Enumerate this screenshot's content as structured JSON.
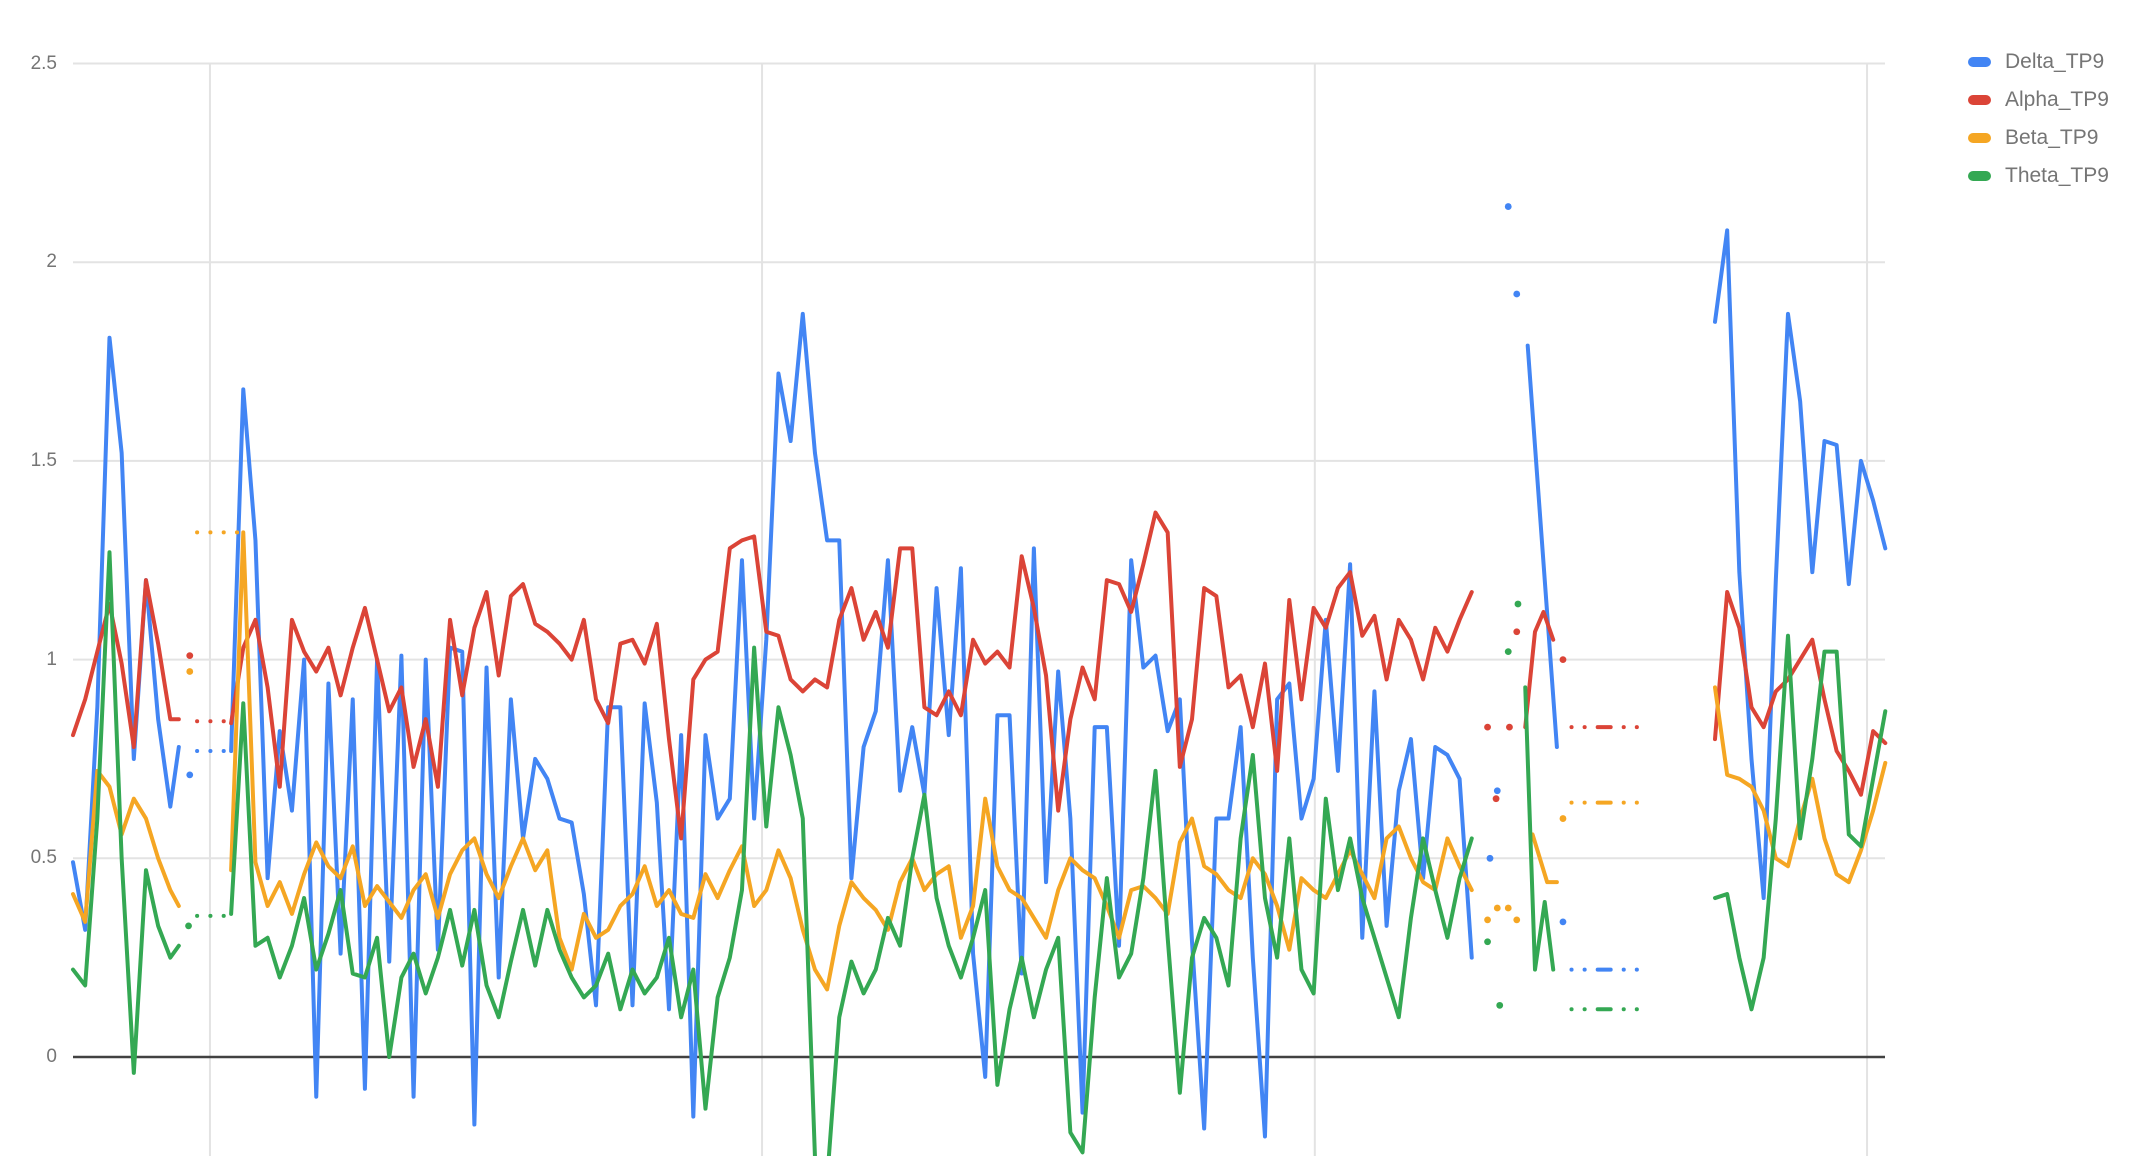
{
  "chart_data": {
    "type": "line",
    "title": "",
    "legend": {
      "position": "right",
      "items": [
        "Delta_TP9",
        "Alpha_TP9",
        "Beta_TP9",
        "Theta_TP9"
      ]
    },
    "y_axis": {
      "min": -0.25,
      "max": 2.5,
      "ticks": [
        0,
        0.5,
        1,
        1.5,
        2,
        2.5
      ],
      "tick_labels": [
        "2.5",
        "2",
        "1.5",
        "1",
        "0.5",
        "0"
      ],
      "baseline_color": "#424242",
      "label_color": "#757575"
    },
    "x_axis": {
      "visible": false,
      "index_range": [
        0,
        149
      ]
    },
    "grid": {
      "horizontal": true,
      "vertical": true,
      "color": "#e3e3e3",
      "x_gridlines_i": [
        11.26,
        56.65,
        102.1,
        147.5
      ]
    },
    "series": [
      {
        "name": "Delta_TP9",
        "color": "#4285f4",
        "segments": [
          {
            "style": "solid",
            "points": [
              [
                0,
                0.49
              ],
              [
                1,
                0.32
              ],
              [
                2,
                0.88
              ],
              [
                3,
                1.81
              ],
              [
                4,
                1.52
              ],
              [
                5,
                0.75
              ],
              [
                6,
                1.2
              ],
              [
                7,
                0.85
              ],
              [
                8,
                0.63
              ],
              [
                8.7,
                0.78
              ]
            ]
          },
          {
            "style": "dots",
            "points": [
              [
                10.2,
                0.77
              ],
              [
                13.0,
                0.77
              ]
            ]
          },
          {
            "style": "solid",
            "start_i": 13,
            "values": [
              0.77,
              1.68,
              1.3,
              0.45,
              0.82,
              0.62,
              1.0,
              -0.1,
              0.94,
              0.26,
              0.9,
              -0.08,
              1.0,
              0.24,
              1.01,
              -0.1,
              1.0,
              0.27,
              1.03,
              1.02,
              -0.17,
              0.98,
              0.2,
              0.9,
              0.55,
              0.75,
              0.7,
              0.6,
              0.59,
              0.41,
              0.13,
              0.88,
              0.88,
              0.13,
              0.89,
              0.64,
              0.12,
              0.81,
              -0.15,
              0.81,
              0.6,
              0.65,
              1.25,
              0.6,
              1.05,
              1.72,
              1.55,
              1.87,
              1.52,
              1.3,
              1.3,
              0.45,
              0.78,
              0.87,
              1.25,
              0.67,
              0.83,
              0.66,
              1.18,
              0.81,
              1.23,
              0.26,
              -0.05,
              0.86,
              0.86,
              0.21,
              1.28,
              0.44,
              0.97,
              0.6,
              -0.14,
              0.83,
              0.83,
              0.28,
              1.25,
              0.98,
              1.01,
              0.82,
              0.9,
              0.29,
              -0.18,
              0.6,
              0.6,
              0.83,
              0.25,
              -0.2,
              0.9,
              0.94,
              0.6,
              0.7,
              1.1,
              0.72,
              1.24,
              0.3,
              0.92,
              0.33,
              0.67,
              0.8,
              0.45,
              0.78,
              0.76,
              0.7,
              0.25
            ]
          },
          {
            "style": "solid",
            "points": [
              [
                119.6,
                1.79
              ],
              [
                122.0,
                0.78
              ]
            ]
          },
          {
            "style": "dashdot",
            "points": [
              [
                123.2,
                0.22
              ],
              [
                129.3,
                0.22
              ]
            ]
          },
          {
            "style": "solid",
            "start_i": 135,
            "values": [
              1.85,
              2.08,
              1.22,
              0.75,
              0.4,
              1.2,
              1.87,
              1.65,
              1.22,
              1.55,
              1.54,
              1.19,
              1.5,
              1.4,
              1.28
            ]
          }
        ],
        "dots": [
          [
            9.6,
            0.71
          ],
          [
            116.5,
            0.5
          ],
          [
            117.1,
            0.67
          ],
          [
            118,
            2.14
          ],
          [
            118.7,
            1.92
          ],
          [
            122.5,
            0.34
          ]
        ]
      },
      {
        "name": "Alpha_TP9",
        "color": "#db4437",
        "segments": [
          {
            "style": "solid",
            "points": [
              [
                0,
                0.81
              ],
              [
                1,
                0.9
              ],
              [
                2,
                1.02
              ],
              [
                3,
                1.14
              ],
              [
                4,
                0.99
              ],
              [
                5,
                0.78
              ],
              [
                6,
                1.2
              ],
              [
                7,
                1.04
              ],
              [
                8,
                0.85
              ],
              [
                8.7,
                0.85
              ]
            ]
          },
          {
            "style": "dots",
            "points": [
              [
                10.2,
                0.845
              ],
              [
                13.0,
                0.845
              ]
            ]
          },
          {
            "style": "solid",
            "start_i": 13,
            "values": [
              0.84,
              1.03,
              1.1,
              0.93,
              0.68,
              1.1,
              1.02,
              0.97,
              1.03,
              0.91,
              1.03,
              1.13,
              1.0,
              0.87,
              0.93,
              0.73,
              0.85,
              0.68,
              1.1,
              0.91,
              1.08,
              1.17,
              0.96,
              1.16,
              1.19,
              1.09,
              1.07,
              1.04,
              1.0,
              1.1,
              0.9,
              0.84,
              1.04,
              1.05,
              0.99,
              1.09,
              0.8,
              0.55,
              0.95,
              1.0,
              1.02,
              1.28,
              1.3,
              1.31,
              1.07,
              1.06,
              0.95,
              0.92,
              0.95,
              0.93,
              1.1,
              1.18,
              1.05,
              1.12,
              1.03,
              1.28,
              1.28,
              0.88,
              0.86,
              0.92,
              0.86,
              1.05,
              0.99,
              1.02,
              0.98,
              1.26,
              1.13,
              0.96,
              0.62,
              0.85,
              0.98,
              0.9,
              1.2,
              1.19,
              1.12,
              1.24,
              1.37,
              1.32,
              0.73,
              0.85,
              1.18,
              1.16,
              0.93,
              0.96,
              0.83,
              0.99,
              0.72,
              1.15,
              0.9,
              1.13,
              1.08,
              1.18,
              1.22,
              1.06,
              1.11,
              0.95,
              1.1,
              1.05,
              0.95,
              1.08,
              1.02,
              1.1,
              1.17
            ]
          },
          {
            "style": "solid",
            "points": [
              [
                119.4,
                0.83
              ],
              [
                120.2,
                1.07
              ],
              [
                120.9,
                1.12
              ],
              [
                121.7,
                1.05
              ]
            ]
          },
          {
            "style": "dashdot",
            "points": [
              [
                123.2,
                0.83
              ],
              [
                129.3,
                0.83
              ]
            ]
          },
          {
            "style": "solid",
            "start_i": 135,
            "values": [
              0.8,
              1.17,
              1.08,
              0.88,
              0.83,
              0.92,
              0.95,
              1.0,
              1.05,
              0.9,
              0.77,
              0.72,
              0.66,
              0.82,
              0.79
            ]
          }
        ],
        "dots": [
          [
            9.6,
            1.01
          ],
          [
            116.3,
            0.83
          ],
          [
            117.0,
            0.65
          ],
          [
            118.1,
            0.83
          ],
          [
            118.7,
            1.07
          ],
          [
            122.5,
            1.0
          ]
        ]
      },
      {
        "name": "Beta_TP9",
        "color": "#f5a623",
        "segments": [
          {
            "style": "solid",
            "points": [
              [
                0,
                0.41
              ],
              [
                1,
                0.34
              ],
              [
                2,
                0.72
              ],
              [
                3,
                0.68
              ],
              [
                4,
                0.56
              ],
              [
                5,
                0.65
              ],
              [
                6,
                0.6
              ],
              [
                7,
                0.5
              ],
              [
                8,
                0.42
              ],
              [
                8.7,
                0.38
              ]
            ]
          },
          {
            "style": "dots",
            "points": [
              [
                10.2,
                1.32
              ],
              [
                13.9,
                1.32
              ]
            ]
          },
          {
            "style": "solid",
            "start_i": 13,
            "values": [
              0.47,
              1.32,
              0.49,
              0.38,
              0.44,
              0.36,
              0.46,
              0.54,
              0.48,
              0.45,
              0.53,
              0.38,
              0.43,
              0.39,
              0.35,
              0.42,
              0.46,
              0.35,
              0.46,
              0.52,
              0.55,
              0.46,
              0.4,
              0.48,
              0.55,
              0.47,
              0.52,
              0.3,
              0.22,
              0.36,
              0.3,
              0.32,
              0.38,
              0.41,
              0.48,
              0.38,
              0.42,
              0.36,
              0.35,
              0.46,
              0.4,
              0.47,
              0.53,
              0.38,
              0.42,
              0.52,
              0.45,
              0.32,
              0.22,
              0.17,
              0.33,
              0.44,
              0.4,
              0.37,
              0.32,
              0.44,
              0.5,
              0.42,
              0.46,
              0.48,
              0.3,
              0.38,
              0.65,
              0.48,
              0.42,
              0.4,
              0.35,
              0.3,
              0.42,
              0.5,
              0.47,
              0.45,
              0.38,
              0.3,
              0.42,
              0.43,
              0.4,
              0.36,
              0.54,
              0.6,
              0.48,
              0.46,
              0.42,
              0.4,
              0.5,
              0.46,
              0.38,
              0.27,
              0.45,
              0.42,
              0.4,
              0.46,
              0.52,
              0.46,
              0.4,
              0.55,
              0.58,
              0.5,
              0.44,
              0.42,
              0.55,
              0.48,
              0.42
            ]
          },
          {
            "style": "solid",
            "points": [
              [
                120.0,
                0.56
              ],
              [
                121.2,
                0.44
              ],
              [
                122.0,
                0.44
              ]
            ]
          },
          {
            "style": "dashdot",
            "points": [
              [
                123.2,
                0.64
              ],
              [
                129.3,
                0.64
              ]
            ]
          },
          {
            "style": "solid",
            "start_i": 135,
            "values": [
              0.93,
              0.71,
              0.7,
              0.68,
              0.62,
              0.5,
              0.48,
              0.6,
              0.7,
              0.55,
              0.46,
              0.44,
              0.52,
              0.62,
              0.74
            ]
          }
        ],
        "dots": [
          [
            9.6,
            0.97
          ],
          [
            116.3,
            0.345
          ],
          [
            117.1,
            0.375
          ],
          [
            118.0,
            0.375
          ],
          [
            118.7,
            0.345
          ],
          [
            122.5,
            0.6
          ]
        ]
      },
      {
        "name": "Theta_TP9",
        "color": "#34a853",
        "segments": [
          {
            "style": "solid",
            "points": [
              [
                0,
                0.22
              ],
              [
                1,
                0.18
              ],
              [
                2,
                0.6
              ],
              [
                3,
                1.27
              ],
              [
                4,
                0.5
              ],
              [
                5,
                -0.04
              ],
              [
                6,
                0.47
              ],
              [
                7,
                0.33
              ],
              [
                8,
                0.25
              ],
              [
                8.7,
                0.28
              ]
            ]
          },
          {
            "style": "dots",
            "points": [
              [
                10.2,
                0.355
              ],
              [
                13.0,
                0.355
              ]
            ]
          },
          {
            "style": "solid",
            "start_i": 13,
            "values": [
              0.36,
              0.89,
              0.28,
              0.3,
              0.2,
              0.28,
              0.4,
              0.22,
              0.31,
              0.42,
              0.21,
              0.2,
              0.3,
              0.0,
              0.2,
              0.26,
              0.16,
              0.25,
              0.37,
              0.23,
              0.37,
              0.18,
              0.1,
              0.24,
              0.37,
              0.23,
              0.37,
              0.27,
              0.2,
              0.15,
              0.18,
              0.26,
              0.12,
              0.22,
              0.16,
              0.2,
              0.3,
              0.1,
              0.22,
              -0.13,
              0.15,
              0.25,
              0.42,
              1.03,
              0.58,
              0.88,
              0.76,
              0.6,
              -0.25,
              -0.31,
              0.1,
              0.24,
              0.16,
              0.22,
              0.35,
              0.28,
              0.5,
              0.66,
              0.4,
              0.28,
              0.2,
              0.3,
              0.42,
              -0.07,
              0.12,
              0.25,
              0.1,
              0.22,
              0.3,
              -0.19,
              -0.24,
              0.15,
              0.45,
              0.2,
              0.26,
              0.45,
              0.72,
              0.3,
              -0.09,
              0.25,
              0.35,
              0.3,
              0.18,
              0.55,
              0.76,
              0.4,
              0.25,
              0.55,
              0.22,
              0.16,
              0.65,
              0.42,
              0.55,
              0.4,
              0.3,
              0.2,
              0.1,
              0.35,
              0.55,
              0.42,
              0.3,
              0.45,
              0.55
            ]
          },
          {
            "style": "solid",
            "points": [
              [
                119.4,
                0.93
              ],
              [
                120.2,
                0.22
              ],
              [
                121.0,
                0.39
              ],
              [
                121.7,
                0.22
              ]
            ]
          },
          {
            "style": "dashdot",
            "points": [
              [
                123.2,
                0.12
              ],
              [
                129.3,
                0.12
              ]
            ]
          },
          {
            "style": "solid",
            "start_i": 135,
            "values": [
              0.4,
              0.41,
              0.25,
              0.12,
              0.25,
              0.6,
              1.06,
              0.55,
              0.75,
              1.02,
              1.02,
              0.56,
              0.53,
              0.7,
              0.87
            ]
          }
        ],
        "dots": [
          [
            9.5,
            0.33
          ],
          [
            116.3,
            0.29
          ],
          [
            117.3,
            0.13
          ],
          [
            118.0,
            1.02
          ],
          [
            118.8,
            1.14
          ]
        ]
      }
    ]
  }
}
